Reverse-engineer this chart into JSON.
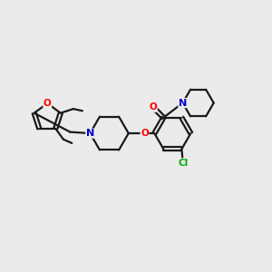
{
  "background_color": "#ebebeb",
  "bond_color": "#1a1a1a",
  "line_width": 1.6,
  "atom_colors": {
    "O": "#ff0000",
    "N": "#0000cc",
    "Cl": "#00aa00",
    "C": "#1a1a1a"
  },
  "figsize": [
    3.0,
    3.0
  ],
  "dpi": 100
}
